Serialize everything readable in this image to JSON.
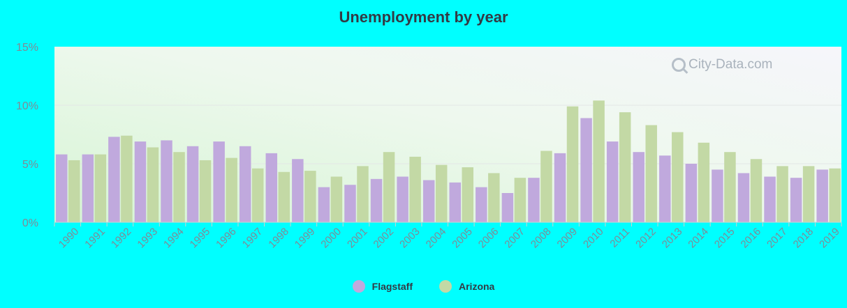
{
  "title": "Unemployment by year",
  "watermark": "City-Data.com",
  "colors": {
    "background": "#00ffff",
    "flagstaff": "#c0a9dd",
    "arizona": "#c3d9a5",
    "text": "#333a44",
    "axis_text": "#7f8b96"
  },
  "legend": [
    {
      "label": "Flagstaff",
      "color": "#c0a9dd"
    },
    {
      "label": "Arizona",
      "color": "#c3d9a5"
    }
  ],
  "chart_data": {
    "type": "bar",
    "title": "Unemployment by year",
    "categories": [
      "1990",
      "1991",
      "1992",
      "1993",
      "1994",
      "1995",
      "1996",
      "1997",
      "1998",
      "1999",
      "2000",
      "2001",
      "2002",
      "2003",
      "2004",
      "2005",
      "2006",
      "2007",
      "2008",
      "2009",
      "2010",
      "2011",
      "2012",
      "2013",
      "2014",
      "2015",
      "2016",
      "2017",
      "2018",
      "2019"
    ],
    "series": [
      {
        "name": "Flagstaff",
        "values": [
          5.8,
          5.8,
          7.3,
          6.9,
          7.0,
          6.5,
          6.9,
          6.5,
          5.9,
          5.4,
          3.0,
          3.2,
          3.7,
          3.9,
          3.6,
          3.4,
          3.0,
          2.5,
          3.8,
          5.9,
          8.9,
          6.9,
          6.0,
          5.7,
          5.0,
          4.5,
          4.2,
          3.9,
          3.8,
          4.5
        ]
      },
      {
        "name": "Arizona",
        "values": [
          5.3,
          5.8,
          7.4,
          6.4,
          6.0,
          5.3,
          5.5,
          4.6,
          4.3,
          4.4,
          3.9,
          4.8,
          6.0,
          5.6,
          4.9,
          4.7,
          4.2,
          3.8,
          6.1,
          9.9,
          10.4,
          9.4,
          8.3,
          7.7,
          6.8,
          6.0,
          5.4,
          4.8,
          4.8,
          4.6
        ]
      }
    ],
    "y_ticks": [
      "0%",
      "5%",
      "10%",
      "15%"
    ],
    "ylim": [
      0,
      15
    ],
    "grid": true,
    "legend_position": "bottom-center"
  }
}
